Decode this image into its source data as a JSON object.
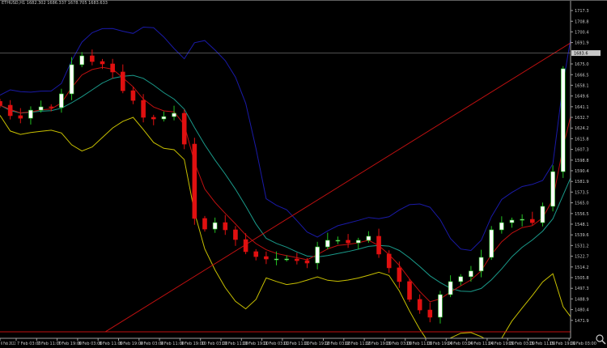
{
  "window": {
    "title": "ETHUSD,H1  1682.302 1686.337 1678.705 1683.633"
  },
  "chart_data": {
    "type": "candlestick",
    "symbol": "ETHUSD",
    "timeframe": "H1",
    "ohlc_header": {
      "open": 1682.302,
      "high": 1686.337,
      "low": 1678.705,
      "close": 1683.633
    },
    "current_price": "1683.6",
    "ylim": [
      1462.8,
      1725.6
    ],
    "y_ticks": [
      "1717.3",
      "1708.8",
      "1700.4",
      "1691.9",
      "1675.0",
      "1666.5",
      "1658.1",
      "1649.6",
      "1641.1",
      "1632.7",
      "1624.2",
      "1615.8",
      "1607.3",
      "1598.8",
      "1590.4",
      "1581.9",
      "1573.5",
      "1565.0",
      "1556.5",
      "1548.1",
      "1539.6",
      "1531.2",
      "1522.7",
      "1514.2",
      "1505.8",
      "1497.3",
      "1488.9",
      "1480.4",
      "1471.9"
    ],
    "x_ticks": [
      "6 Feb 2022",
      "7 Feb 03:00",
      "7 Feb 11:00",
      "7 Feb 19:00",
      "8 Feb 03:00",
      "8 Feb 11:00",
      "8 Feb 19:00",
      "9 Feb 03:00",
      "9 Feb 11:00",
      "9 Feb 19:00",
      "10 Feb 03:00",
      "10 Feb 11:00",
      "10 Feb 19:00",
      "11 Feb 03:00",
      "11 Feb 11:00",
      "11 Feb 19:00",
      "12 Feb 03:00",
      "12 Feb 11:00",
      "12 Feb 19:00",
      "13 Feb 03:00",
      "13 Feb 11:00",
      "13 Feb 19:00",
      "14 Feb 03:00",
      "14 Feb 11:00",
      "14 Feb 19:00",
      "15 Feb 03:00",
      "15 Feb 11:00",
      "15 Feb 19:00",
      "16 Feb 03:00"
    ],
    "closes": [
      1642.3,
      1634.0,
      1632.0,
      1638.4,
      1641.0,
      1640.4,
      1651.3,
      1674.4,
      1681.4,
      1676.9,
      1675.0,
      1668.6,
      1653.8,
      1646.1,
      1632.7,
      1631.4,
      1633.3,
      1635.9,
      1611.5,
      1552.6,
      1544.2,
      1549.3,
      1543.6,
      1535.9,
      1526.3,
      1522.4,
      1520.5,
      1520.5,
      1520.5,
      1519.2,
      1517.3,
      1530.1,
      1535.3,
      1535.3,
      1533.3,
      1535.3,
      1538.5,
      1524.4,
      1513.5,
      1502.6,
      1488.5,
      1480.1,
      1474.4,
      1492.3,
      1502.6,
      1506.5,
      1511.0,
      1521.8,
      1543.6,
      1549.3,
      1551.3,
      1551.9,
      1549.3,
      1562.2,
      1589.7,
      1671.2,
      1692.3,
      1690.4,
      1683.6
    ],
    "indicators": {
      "bollinger_upper": {
        "color": "#1a1aa8"
      },
      "bollinger_lower": {
        "color": "#c8c000"
      },
      "moving_average_fast": {
        "color": "#c01010"
      },
      "moving_average_slow": {
        "color": "#1a9a8a"
      }
    },
    "trendline": {
      "from_price": 1462.8,
      "to_price": 1709.6,
      "color": "#c01010"
    },
    "horizontal_line": {
      "price": 1462.8,
      "color": "#c01010"
    },
    "colors": {
      "bull": "#22c022",
      "bear": "#e01010",
      "bull_body": "#ffffff",
      "axis": "#c8c8c8"
    }
  }
}
